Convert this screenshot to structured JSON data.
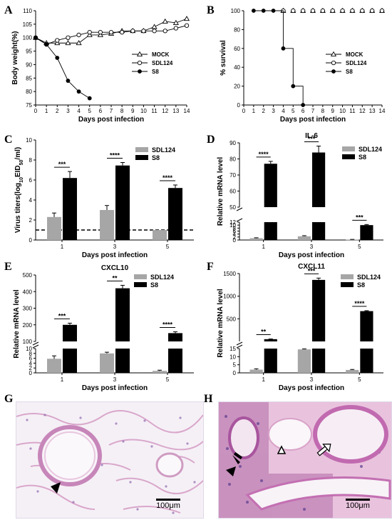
{
  "panels": {
    "A": {
      "letter": "A",
      "chart_data": {
        "type": "line",
        "x": [
          0,
          1,
          2,
          3,
          4,
          5,
          6,
          7,
          8,
          9,
          10,
          11,
          12,
          13,
          14
        ],
        "xlabel": "Days post infection",
        "ylabel": "Body weight(%)",
        "ylim": [
          75,
          110
        ],
        "yticks": [
          75,
          80,
          85,
          90,
          95,
          100,
          105,
          110
        ],
        "legend_position": "right",
        "series": [
          {
            "name": "MOCK",
            "marker": "triangle",
            "values": [
              100,
              98,
              98,
              98,
              98,
              101,
              101,
              101.5,
              102.5,
              102.5,
              102.5,
              104,
              106,
              105.5,
              107
            ]
          },
          {
            "name": "SDL124",
            "marker": "open-circle",
            "values": [
              100,
              97.5,
              99,
              100,
              101,
              102,
              102,
              102,
              102,
              102.5,
              102.5,
              102.5,
              102.5,
              103.5,
              104.5
            ]
          },
          {
            "name": "S8",
            "marker": "filled-circle",
            "values": [
              100,
              97.5,
              92.5,
              84,
              80,
              77.5,
              null,
              null,
              null,
              null,
              null,
              null,
              null,
              null,
              null
            ]
          }
        ]
      }
    },
    "B": {
      "letter": "B",
      "chart_data": {
        "type": "line",
        "x": [
          0,
          1,
          2,
          3,
          4,
          5,
          6,
          7,
          8,
          9,
          10,
          11,
          12,
          13,
          14
        ],
        "xlabel": "Days post infection",
        "ylabel": "% survival",
        "ylim": [
          0,
          100
        ],
        "yticks": [
          0,
          20,
          40,
          60,
          80,
          100
        ],
        "legend_position": "right",
        "series": [
          {
            "name": "MOCK",
            "marker": "triangle",
            "values": [
              null,
              100,
              100,
              100,
              100,
              100,
              100,
              100,
              100,
              100,
              100,
              100,
              100,
              100,
              100
            ]
          },
          {
            "name": "SDL124",
            "marker": "open-circle",
            "values": [
              null,
              100,
              100,
              100,
              100,
              100,
              100,
              100,
              100,
              100,
              100,
              100,
              100,
              100,
              100
            ]
          },
          {
            "name": "S8",
            "marker": "filled-circle",
            "values": [
              null,
              100,
              100,
              100,
              60,
              20,
              0,
              null,
              null,
              null,
              null,
              null,
              null,
              null,
              null
            ]
          }
        ]
      }
    },
    "C": {
      "letter": "C",
      "chart_data": {
        "type": "bar",
        "xlabel": "Days post infection",
        "ylabel": "Virus titers(log10EID50/ml)",
        "ylabel_parts": [
          "Virus titers(log",
          "10",
          "EID",
          "50",
          "/ml)"
        ],
        "categories": [
          "1",
          "3",
          "5"
        ],
        "ylim": [
          0,
          10
        ],
        "yticks": [
          0,
          2,
          4,
          6,
          8,
          10
        ],
        "detection_limit": 1,
        "legend_position": "top-right",
        "series": [
          {
            "name": "SDL124",
            "values": [
              2.3,
              3.0,
              1.0
            ],
            "errors": [
              0.4,
              0.45,
              0
            ]
          },
          {
            "name": "S8",
            "values": [
              6.2,
              7.45,
              5.2
            ],
            "errors": [
              0.65,
              0.3,
              0.3
            ]
          }
        ],
        "significance": [
          "***",
          "****",
          "****"
        ]
      }
    },
    "D": {
      "letter": "D",
      "chart_data": {
        "type": "bar",
        "title": "IL-6",
        "xlabel": "Days post infection",
        "ylabel": "Relative mRNA level",
        "categories": [
          "1",
          "3",
          "5"
        ],
        "broken_axis": {
          "lower": [
            0,
            12
          ],
          "upper": [
            50,
            90
          ]
        },
        "yticks_lower": [
          0,
          2,
          4,
          6,
          8,
          10,
          12
        ],
        "yticks_upper": [
          50,
          60,
          70,
          80,
          90
        ],
        "legend_position": "top-right",
        "series": [
          {
            "name": "SDL124",
            "values": [
              1.2,
              2.5,
              0.3
            ],
            "errors": [
              0.3,
              0.4,
              0.1
            ]
          },
          {
            "name": "S8",
            "values": [
              77,
              84,
              10
            ],
            "errors": [
              1.5,
              4,
              0.4
            ]
          }
        ],
        "significance": [
          "****",
          "***",
          "***"
        ]
      }
    },
    "E": {
      "letter": "E",
      "chart_data": {
        "type": "bar",
        "title": "CXCL10",
        "xlabel": "Days post infection",
        "ylabel": "Relative mRNA level",
        "categories": [
          "1",
          "3",
          "5"
        ],
        "broken_axis": {
          "lower": [
            0,
            10
          ],
          "upper": [
            100,
            500
          ]
        },
        "yticks_lower": [
          0,
          2,
          4,
          6,
          8,
          10
        ],
        "yticks_upper": [
          100,
          200,
          300,
          400,
          500
        ],
        "legend_position": "top-right",
        "series": [
          {
            "name": "SDL124",
            "values": [
              5.8,
              8,
              0.8
            ],
            "errors": [
              1.2,
              0.5,
              0.3
            ]
          },
          {
            "name": "S8",
            "values": [
              200,
              420,
              150
            ],
            "errors": [
              10,
              18,
              8
            ]
          }
        ],
        "significance": [
          "***",
          "**",
          "****"
        ]
      }
    },
    "F": {
      "letter": "F",
      "chart_data": {
        "type": "bar",
        "title": "CXCL11",
        "xlabel": "Days post infection",
        "ylabel": "Relative mRNA level",
        "categories": [
          "1",
          "3",
          "5"
        ],
        "broken_axis": {
          "lower": [
            0,
            15
          ],
          "upper": [
            0,
            1500
          ]
        },
        "yticks_lower": [
          0,
          5,
          10,
          15
        ],
        "yticks_upper": [
          0,
          500,
          1000,
          1500
        ],
        "legend_position": "top-right",
        "series": [
          {
            "name": "SDL124",
            "values": [
              2,
              14.5,
              1.8
            ],
            "errors": [
              0.5,
              0.3,
              0.3
            ]
          },
          {
            "name": "S8",
            "values": [
              50,
              1360,
              670
            ],
            "errors": [
              5,
              40,
              10
            ]
          }
        ],
        "significance": [
          "**",
          "***",
          "****"
        ]
      }
    },
    "G": {
      "letter": "G",
      "scalebar": "100μm"
    },
    "H": {
      "letter": "H",
      "scalebar": "100μm"
    }
  },
  "colors": {
    "grey_bar": "#a6a6a6",
    "black_bar": "#000000",
    "tissue_pink": "#e3b4d4",
    "nuclei": "#6a4a9a",
    "background": "#f7f3f8"
  }
}
